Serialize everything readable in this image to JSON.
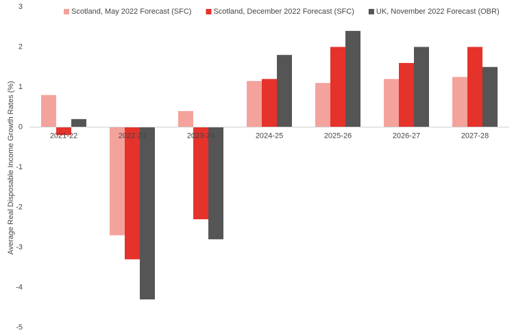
{
  "chart_data": {
    "type": "bar",
    "y_label": "Average Real Disposable Income Growth Rates (%)",
    "categories": [
      "2021-22",
      "2022-23",
      "2023-24",
      "2024-25",
      "2025-26",
      "2026-27",
      "2027-28"
    ],
    "series": [
      {
        "name": "Scotland, May 2022 Forecast (SFC)",
        "color": "#f4a29c",
        "values": [
          0.8,
          -2.7,
          0.4,
          1.15,
          1.1,
          1.2,
          1.25
        ]
      },
      {
        "name": "Scotland, December 2022 Forecast (SFC)",
        "color": "#e5322b",
        "values": [
          -0.2,
          -3.3,
          -2.3,
          1.2,
          2.0,
          1.6,
          2.0
        ]
      },
      {
        "name": "UK, November 2022 Forecast (OBR)",
        "color": "#555555",
        "values": [
          0.2,
          -4.3,
          -2.8,
          1.8,
          2.4,
          2.0,
          1.5
        ]
      }
    ],
    "ylim": [
      -5,
      3
    ],
    "yticks": [
      -5,
      -4,
      -3,
      -2,
      -1,
      0,
      1,
      2,
      3
    ],
    "legend": "top"
  }
}
